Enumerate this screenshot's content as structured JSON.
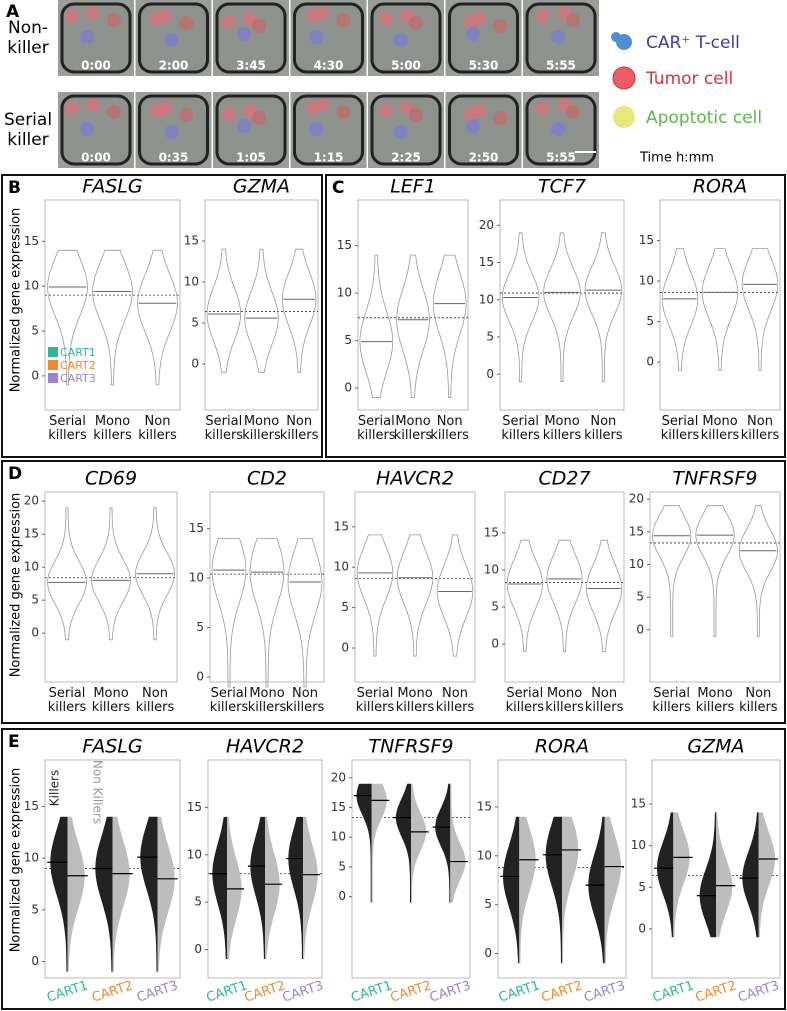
{
  "panel_a": {
    "label": "A",
    "rows": [
      {
        "name": "Non-killer",
        "times": [
          "0:00",
          "2:00",
          "3:45",
          "4:30",
          "5:00",
          "5:30",
          "5:55"
        ]
      },
      {
        "name": "Serial killer",
        "times": [
          "0:00",
          "0:35",
          "1:05",
          "1:15",
          "2:25",
          "2:50",
          "5:55"
        ]
      }
    ],
    "legend": [
      {
        "text": "CAR⁺ T-cell",
        "color": "#3b3bb3"
      },
      {
        "text": "Tumor cell",
        "color": "#e0303a"
      },
      {
        "text": "Apoptotic cell",
        "color": "#5cb849"
      }
    ],
    "time_unit": "Time h:mm"
  },
  "panel_labels": [
    "B",
    "C",
    "D",
    "E"
  ],
  "y_label": "Normalized gene expression",
  "cart_legend": [
    "CART1",
    "CART2",
    "CART3"
  ],
  "cart_colors": [
    "#2bb89a",
    "#f08a2b",
    "#9b82d6"
  ],
  "split_legend": [
    "Killers",
    "Non Killers"
  ],
  "chart_data": [
    {
      "type": "violin",
      "title": "FASLG",
      "categories": [
        "Serial killers",
        "Mono killers",
        "Non killers"
      ],
      "medians": [
        9.9,
        9.4,
        8.1
      ],
      "overall": 9.0,
      "ylim": [
        -3.8,
        19.6
      ],
      "yticks": [
        0,
        5,
        10,
        15
      ]
    },
    {
      "type": "violin",
      "title": "GZMA",
      "categories": [
        "Serial killers",
        "Mono killers",
        "Non killers"
      ],
      "medians": [
        6.1,
        5.6,
        7.9
      ],
      "overall": 6.4,
      "ylim": [
        -5.6,
        20
      ],
      "yticks": [
        0,
        5,
        10,
        15
      ]
    },
    {
      "type": "violin",
      "title": "LEF1",
      "categories": [
        "Serial killers",
        "Mono killers",
        "Non killers"
      ],
      "medians": [
        4.9,
        7.2,
        8.9
      ],
      "overall": 7.4,
      "ylim": [
        -2.3,
        19.8
      ],
      "yticks": [
        0,
        5,
        10,
        15
      ]
    },
    {
      "type": "violin",
      "title": "TCF7",
      "categories": [
        "Serial killers",
        "Mono killers",
        "Non killers"
      ],
      "medians": [
        10.3,
        11.0,
        11.3
      ],
      "overall": 10.9,
      "ylim": [
        -4.8,
        23.4
      ],
      "yticks": [
        0,
        5,
        10,
        15,
        20
      ]
    },
    {
      "type": "violin",
      "title": "RORA",
      "categories": [
        "Serial killers",
        "Mono killers",
        "Non killers"
      ],
      "medians": [
        7.8,
        8.6,
        9.6
      ],
      "overall": 8.6,
      "ylim": [
        -5.9,
        20
      ],
      "yticks": [
        0,
        5,
        10,
        15
      ]
    },
    {
      "type": "violin",
      "title": "CD69",
      "categories": [
        "Serial killers",
        "Mono killers",
        "Non killers"
      ],
      "medians": [
        7.7,
        8.0,
        9.0
      ],
      "overall": 8.4,
      "ylim": [
        -7.4,
        21.4
      ],
      "yticks": [
        0,
        5,
        10,
        15,
        20
      ]
    },
    {
      "type": "violin",
      "title": "CD2",
      "categories": [
        "Serial killers",
        "Mono killers",
        "Non killers"
      ],
      "medians": [
        10.8,
        10.6,
        9.6
      ],
      "overall": 10.4,
      "ylim": [
        -0.5,
        18.7
      ],
      "yticks": [
        0,
        5,
        10,
        15
      ]
    },
    {
      "type": "violin",
      "title": "HAVCR2",
      "categories": [
        "Serial killers",
        "Mono killers",
        "Non killers"
      ],
      "medians": [
        9.3,
        8.7,
        7.0
      ],
      "overall": 8.6,
      "ylim": [
        -4.2,
        19.3
      ],
      "yticks": [
        0,
        5,
        10,
        15
      ]
    },
    {
      "type": "violin",
      "title": "CD27",
      "categories": [
        "Serial killers",
        "Mono killers",
        "Non killers"
      ],
      "medians": [
        8.1,
        8.8,
        7.5
      ],
      "overall": 8.3,
      "ylim": [
        -5.1,
        20.5
      ],
      "yticks": [
        0,
        5,
        10,
        15
      ]
    },
    {
      "type": "violin",
      "title": "TNFRSF9",
      "categories": [
        "Serial killers",
        "Mono killers",
        "Non killers"
      ],
      "medians": [
        14.4,
        14.5,
        12.1
      ],
      "overall": 13.3,
      "ylim": [
        -8,
        21.1
      ],
      "yticks": [
        0,
        5,
        10,
        15,
        20
      ]
    },
    {
      "type": "split_violin",
      "title": "FASLG",
      "categories": [
        "CART1",
        "CART2",
        "CART3"
      ],
      "series": [
        {
          "color": "#222222",
          "values": [
            9.6,
            9.0,
            10.1
          ]
        },
        {
          "color": "#bdbdbd",
          "values": [
            8.3,
            8.5,
            8.0
          ]
        }
      ],
      "overall": 9.0,
      "ylim": [
        -1.6,
        19.5
      ],
      "yticks": [
        0,
        5,
        10,
        15
      ]
    },
    {
      "type": "split_violin",
      "title": "HAVCR2",
      "categories": [
        "CART1",
        "CART2",
        "CART3"
      ],
      "series": [
        {
          "color": "#222222",
          "values": [
            8.0,
            8.8,
            9.6
          ]
        },
        {
          "color": "#bdbdbd",
          "values": [
            6.4,
            6.9,
            7.9
          ]
        }
      ],
      "overall": 8.0,
      "ylim": [
        -3,
        20
      ],
      "yticks": [
        0,
        5,
        10,
        15
      ]
    },
    {
      "type": "split_violin",
      "title": "TNFRSF9",
      "categories": [
        "CART1",
        "CART2",
        "CART3"
      ],
      "series": [
        {
          "color": "#222222",
          "values": [
            17.0,
            13.3,
            11.7
          ]
        },
        {
          "color": "#bdbdbd",
          "values": [
            16.2,
            10.9,
            5.9
          ]
        }
      ],
      "overall": 13.3,
      "ylim": [
        -13.7,
        23
      ],
      "yticks": [
        0,
        5,
        10,
        15,
        20
      ]
    },
    {
      "type": "split_violin",
      "title": "RORA",
      "categories": [
        "CART1",
        "CART2",
        "CART3"
      ],
      "series": [
        {
          "color": "#222222",
          "values": [
            7.9,
            10.1,
            7.0
          ]
        },
        {
          "color": "#bdbdbd",
          "values": [
            9.6,
            10.6,
            8.9
          ]
        }
      ],
      "overall": 8.8,
      "ylim": [
        -2.5,
        19.8
      ],
      "yticks": [
        0,
        5,
        10,
        15
      ]
    },
    {
      "type": "split_violin",
      "title": "GZMA",
      "categories": [
        "CART1",
        "CART2",
        "CART3"
      ],
      "series": [
        {
          "color": "#222222",
          "values": [
            7.3,
            4.0,
            6.1
          ]
        },
        {
          "color": "#bdbdbd",
          "values": [
            8.6,
            5.2,
            8.4
          ]
        }
      ],
      "overall": 6.4,
      "ylim": [
        -5.9,
        20.3
      ],
      "yticks": [
        0,
        5,
        10,
        15
      ]
    }
  ]
}
